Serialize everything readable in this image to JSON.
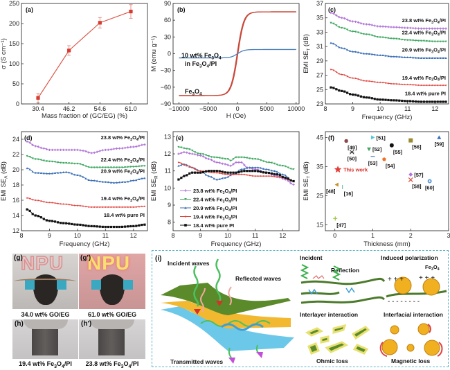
{
  "figure": {
    "colors": {
      "purple": "#b074d8",
      "green": "#3fa860",
      "blue": "#3a6fb8",
      "red": "#e0403a",
      "black": "#111111",
      "line_a": "#d9584a",
      "curve_fe3o4": "#c9483a",
      "curve_composite": "#4a7fb8"
    }
  },
  "chart_data": [
    {
      "id": "a",
      "panel_label": "(a)",
      "type": "line",
      "title": "",
      "xlabel": "Mass fraction of (GC/EG) (%)",
      "ylabel": "σ (S cm⁻¹)",
      "categories": [
        "30.4",
        "46.2",
        "54.6",
        "61.0"
      ],
      "ylim": [
        0,
        250
      ],
      "yticks": [
        0,
        50,
        100,
        150,
        200,
        250
      ],
      "series": [
        {
          "name": "conductivity",
          "values": [
            15,
            133,
            202,
            230
          ],
          "errors": [
            11,
            12,
            13,
            17
          ],
          "marker": "square"
        }
      ]
    },
    {
      "id": "b",
      "panel_label": "(b)",
      "type": "line",
      "xlabel": "H (Oe)",
      "ylabel": "M (emu g⁻¹)",
      "xlim": [
        -10000,
        10000
      ],
      "ylim": [
        -90,
        90
      ],
      "xticks": [
        -10000,
        -5000,
        0,
        5000,
        10000
      ],
      "yticks": [
        -90,
        -60,
        -30,
        0,
        30,
        60,
        90
      ],
      "annotations": [
        {
          "text_parts": [
            "10 wt% Fe",
            "3",
            "O",
            "4"
          ],
          "line2_parts": [
            "in Fe",
            "3",
            "O",
            "4",
            "/PI"
          ]
        },
        {
          "text_parts": [
            "Fe",
            "3",
            "O",
            "4"
          ]
        }
      ],
      "series": [
        {
          "name": "Fe3O4",
          "saturation": 75,
          "x": [
            -10000,
            -5000,
            -2000,
            -1000,
            -500,
            0,
            500,
            1000,
            2000,
            5000,
            10000
          ],
          "y": [
            -75,
            -73,
            -68,
            -55,
            -35,
            0,
            35,
            55,
            68,
            73,
            75
          ]
        },
        {
          "name": "10 wt% Fe3O4 in Fe3O4/PI",
          "saturation": 7.5,
          "x": [
            -10000,
            -5000,
            -2000,
            -1000,
            -500,
            0,
            500,
            1000,
            2000,
            5000,
            10000
          ],
          "y": [
            -7.5,
            -7.3,
            -6.8,
            -5.5,
            -3.5,
            0,
            3.5,
            5.5,
            6.8,
            7.3,
            7.5
          ]
        }
      ]
    },
    {
      "id": "c",
      "panel_label": "(c)",
      "type": "line",
      "xlabel": "Frequency (GHz)",
      "ylabel": "EMI SE_T (dB)",
      "xlim": [
        8,
        12.5
      ],
      "ylim": [
        23,
        37
      ],
      "xticks": [
        8,
        9,
        10,
        11,
        12
      ],
      "yticks": [
        23,
        25,
        27,
        29,
        31,
        33,
        35,
        37
      ],
      "series": [
        {
          "name": "23.8 wt% Fe3O4/PI",
          "color_key": "purple",
          "marker": "plus",
          "x": [
            8.2,
            8.6,
            9.0,
            9.5,
            10.0,
            10.5,
            11.0,
            11.5,
            12.0,
            12.4
          ],
          "y": [
            35.7,
            35.0,
            34.5,
            34.1,
            33.8,
            33.7,
            33.6,
            33.5,
            33.5,
            33.5
          ]
        },
        {
          "name": "22.4 wt% Fe3O4/PI",
          "color_key": "green",
          "marker": "tri-down",
          "x": [
            8.2,
            8.6,
            9.0,
            9.5,
            10.0,
            10.5,
            11.0,
            11.5,
            12.0,
            12.4
          ],
          "y": [
            34.3,
            33.6,
            33.1,
            32.7,
            32.3,
            32.1,
            31.9,
            31.8,
            31.7,
            31.7
          ]
        },
        {
          "name": "20.9 wt% Fe3O4/PI",
          "color_key": "blue",
          "marker": "tri-up",
          "x": [
            8.2,
            8.6,
            9.0,
            9.5,
            10.0,
            10.5,
            11.0,
            11.5,
            12.0,
            12.4
          ],
          "y": [
            31.5,
            30.8,
            30.3,
            30.0,
            29.8,
            29.6,
            29.5,
            29.4,
            29.4,
            29.4
          ]
        },
        {
          "name": "19.4 wt% Fe3O4/PI",
          "color_key": "red",
          "marker": "star",
          "x": [
            8.2,
            8.6,
            9.0,
            9.5,
            10.0,
            10.5,
            11.0,
            11.5,
            12.0,
            12.4
          ],
          "y": [
            27.8,
            27.1,
            26.6,
            26.2,
            26.0,
            25.8,
            25.7,
            25.6,
            25.6,
            25.6
          ]
        },
        {
          "name": "18.4 wt% pure PI",
          "color_key": "black",
          "marker": "square",
          "x": [
            8.2,
            8.6,
            9.0,
            9.5,
            10.0,
            10.5,
            11.0,
            11.5,
            12.0,
            12.4
          ],
          "y": [
            25.3,
            24.8,
            24.3,
            23.9,
            23.6,
            23.5,
            23.4,
            23.3,
            23.3,
            23.3
          ]
        }
      ],
      "labels": [
        {
          "parts": [
            "23.8 wt% Fe",
            "3",
            "O",
            "4",
            "/PI"
          ],
          "at_y": 34.4
        },
        {
          "parts": [
            "22.4 wt% Fe",
            "3",
            "O",
            "4",
            "/PI"
          ],
          "at_y": 32.7
        },
        {
          "parts": [
            "20.9 wt% Fe",
            "3",
            "O",
            "4",
            "/PI"
          ],
          "at_y": 30.3
        },
        {
          "parts": [
            "19.4 wt% Fe",
            "3",
            "O",
            "4",
            "/PI"
          ],
          "at_y": 26.4
        },
        {
          "parts": [
            "18.4 wt% pure PI"
          ],
          "at_y": 24.2
        }
      ]
    },
    {
      "id": "d",
      "panel_label": "(d)",
      "type": "line",
      "xlabel": "Frequency (GHz)",
      "ylabel": "EMI SE_A (dB)",
      "xlim": [
        8,
        12.5
      ],
      "ylim": [
        12,
        25
      ],
      "xticks": [
        8,
        9,
        10,
        11,
        12
      ],
      "yticks": [
        12,
        14,
        16,
        18,
        20,
        22,
        24
      ],
      "series": [
        {
          "name": "23.8 wt% Fe3O4/PI",
          "color_key": "purple",
          "marker": "plus",
          "x": [
            8.2,
            8.5,
            8.8,
            9.0,
            9.5,
            10.0,
            10.2,
            10.5,
            11.0,
            11.5,
            12.0,
            12.4
          ],
          "y": [
            23.7,
            23.1,
            22.8,
            22.6,
            22.6,
            22.6,
            22.5,
            22.2,
            22.6,
            22.8,
            23.0,
            23.3
          ]
        },
        {
          "name": "22.4 wt% Fe3O4/PI",
          "color_key": "green",
          "marker": "tri-down",
          "x": [
            8.2,
            8.5,
            9.0,
            9.5,
            10.0,
            10.5,
            11.0,
            11.5,
            12.0,
            12.4
          ],
          "y": [
            21.8,
            21.4,
            21.1,
            20.9,
            20.8,
            20.3,
            20.3,
            20.3,
            20.4,
            20.5
          ]
        },
        {
          "name": "20.9 wt% Fe3O4/PI",
          "color_key": "blue",
          "marker": "tri-up",
          "x": [
            8.2,
            8.5,
            9.0,
            9.3,
            9.6,
            10.0,
            10.5,
            11.0,
            11.3,
            11.7,
            12.0,
            12.4
          ],
          "y": [
            20.2,
            19.6,
            19.5,
            19.6,
            19.7,
            19.3,
            18.6,
            18.4,
            18.3,
            18.4,
            18.6,
            18.9
          ]
        },
        {
          "name": "19.4 wt% Fe3O4/PI",
          "color_key": "red",
          "marker": "star",
          "x": [
            8.2,
            8.5,
            9.0,
            9.5,
            10.0,
            10.5,
            11.0,
            11.5,
            12.0,
            12.4
          ],
          "y": [
            16.3,
            16.0,
            15.7,
            15.5,
            15.3,
            15.1,
            15.1,
            15.1,
            15.1,
            15.2
          ]
        },
        {
          "name": "18.4 wt% pure PI",
          "color_key": "black",
          "marker": "square",
          "x": [
            8.2,
            8.5,
            9.0,
            9.5,
            10.0,
            10.5,
            11.0,
            11.5,
            12.0,
            12.4
          ],
          "y": [
            14.8,
            14.0,
            13.3,
            13.0,
            12.8,
            12.6,
            12.5,
            12.5,
            12.6,
            12.8
          ]
        }
      ],
      "labels": [
        {
          "parts": [
            "23.8 wt% Fe",
            "3",
            "O",
            "4",
            "/PI"
          ],
          "at_y": 24.0
        },
        {
          "parts": [
            "22.4 wt% Fe",
            "3",
            "O",
            "4",
            "/PI"
          ],
          "at_y": 21.1
        },
        {
          "parts": [
            "20.9 wt% Fe",
            "3",
            "O",
            "4",
            "/PI"
          ],
          "at_y": 19.6
        },
        {
          "parts": [
            "19.4 wt% Fe",
            "3",
            "O",
            "4",
            "/PI"
          ],
          "at_y": 16.0
        },
        {
          "parts": [
            "18.4 wt% pure PI"
          ],
          "at_y": 13.8
        }
      ]
    },
    {
      "id": "e",
      "panel_label": "(e)",
      "type": "line",
      "xlabel": "Frequency (GHz)",
      "ylabel": "EMI SE_R (dB)",
      "xlim": [
        8,
        12.6
      ],
      "ylim": [
        7.5,
        13.3
      ],
      "xticks": [
        8,
        9,
        10,
        11,
        12
      ],
      "yticks": [
        8,
        9,
        10,
        11,
        12,
        13
      ],
      "legend": "bottom-left",
      "series": [
        {
          "name": "23.8 wt% Fe3O4/PI",
          "color_key": "purple",
          "marker": "plus",
          "x": [
            8.2,
            8.4,
            8.7,
            9.0,
            9.3,
            9.6,
            9.9,
            10.1,
            10.3,
            10.5,
            10.7,
            11.0,
            11.4,
            11.8,
            12.1,
            12.4
          ],
          "y": [
            12.0,
            12.1,
            12.0,
            11.9,
            11.7,
            11.5,
            11.4,
            11.3,
            11.5,
            11.5,
            11.2,
            11.1,
            10.9,
            10.7,
            10.5,
            10.2
          ]
        },
        {
          "name": "22.4 wt% Fe3O4/PI",
          "color_key": "green",
          "marker": "tri-down",
          "x": [
            8.2,
            8.5,
            9.0,
            9.5,
            10.0,
            10.1,
            10.3,
            10.5,
            11.0,
            11.5,
            12.0,
            12.4
          ],
          "y": [
            12.4,
            12.3,
            12.0,
            11.8,
            11.7,
            11.6,
            11.8,
            11.8,
            11.7,
            11.5,
            11.3,
            11.1
          ]
        },
        {
          "name": "20.9 wt% Fe3O4/PI",
          "color_key": "blue",
          "marker": "tri-up",
          "x": [
            8.2,
            8.4,
            8.7,
            9.0,
            9.3,
            9.6,
            9.9,
            10.2,
            10.5,
            10.8,
            11.1,
            11.4,
            11.7,
            12.0,
            12.4
          ],
          "y": [
            11.3,
            11.4,
            11.2,
            11.0,
            10.7,
            10.5,
            10.6,
            10.8,
            11.1,
            11.2,
            11.2,
            11.1,
            11.0,
            10.8,
            10.4
          ]
        },
        {
          "name": "19.4 wt% Fe3O4/PI",
          "color_key": "red",
          "marker": "star",
          "x": [
            8.2,
            8.5,
            9.0,
            9.5,
            10.0,
            10.5,
            11.0,
            11.5,
            12.0,
            12.4
          ],
          "y": [
            11.5,
            11.3,
            11.0,
            10.9,
            10.8,
            10.8,
            10.7,
            10.7,
            10.6,
            10.4
          ]
        },
        {
          "name": "18.4 wt% pure PI",
          "color_key": "black",
          "marker": "square",
          "x": [
            8.2,
            8.4,
            8.7,
            9.0,
            9.3,
            9.6,
            10.0,
            10.3,
            10.6,
            11.0,
            11.4,
            11.8,
            12.1,
            12.4
          ],
          "y": [
            10.5,
            10.7,
            10.9,
            10.9,
            11.0,
            11.0,
            10.9,
            10.9,
            11.0,
            11.0,
            10.9,
            10.8,
            10.6,
            10.4
          ]
        }
      ],
      "legend_entries": [
        {
          "parts": [
            "23.8 wt% Fe",
            "3",
            "O",
            "4",
            "/PI"
          ]
        },
        {
          "parts": [
            "22.4 wt% Fe",
            "3",
            "O",
            "4",
            "/PI"
          ]
        },
        {
          "parts": [
            "20.9 wt% Fe",
            "3",
            "O",
            "4",
            "/PI"
          ]
        },
        {
          "parts": [
            "19.4 wt% Fe",
            "3",
            "O",
            "4",
            "/PI"
          ]
        },
        {
          "parts": [
            "18.4 wt% pure PI"
          ]
        }
      ]
    },
    {
      "id": "f",
      "panel_label": "(f)",
      "type": "scatter",
      "xlabel": "Thickness (mm)",
      "ylabel": "EMI SE_T (dB)",
      "xlim": [
        -0.25,
        3.0
      ],
      "ylim": [
        13,
        47
      ],
      "xticks": [
        0,
        1,
        2,
        3
      ],
      "yticks": [
        15,
        25,
        35,
        45
      ],
      "points": [
        {
          "label": "This work",
          "x": 0.08,
          "y": 34,
          "marker": "star",
          "color": "#e0403a",
          "label_pos": "right"
        },
        {
          "label": "[47]",
          "x": 0.01,
          "y": 17.2,
          "marker": "plus",
          "color": "#9ac43c",
          "label_pos": "below-right"
        },
        {
          "label": "[48]",
          "x": 0.05,
          "y": 28.8,
          "marker": "tri-left",
          "color": "#c8922a",
          "label_pos": "below-left"
        },
        {
          "label": "[16]",
          "x": 0.2,
          "y": 28.0,
          "marker": "vline",
          "color": "#7ac8a8",
          "label_pos": "below-right"
        },
        {
          "label": "[49]",
          "x": 0.3,
          "y": 43.8,
          "marker": "hexagon",
          "color": "#8a4a4a",
          "label_pos": "below-right"
        },
        {
          "label": "[50]",
          "x": 0.45,
          "y": 40.0,
          "marker": "asterisk",
          "color": "#333333",
          "label_pos": "below"
        },
        {
          "label": "[51]",
          "x": 1.0,
          "y": 45.0,
          "marker": "tri-right",
          "color": "#4ac8d8",
          "label_pos": "right"
        },
        {
          "label": "[52]",
          "x": 0.9,
          "y": 41.0,
          "marker": "tri-down",
          "color": "#3fa860",
          "label_pos": "right"
        },
        {
          "label": "[53]",
          "x": 1.0,
          "y": 38.5,
          "marker": "hline",
          "color": "#5a8ac8",
          "label_pos": "below"
        },
        {
          "label": "[54]",
          "x": 1.3,
          "y": 37.5,
          "marker": "pentagon",
          "color": "#f07020",
          "label_pos": "below-right"
        },
        {
          "label": "[55]",
          "x": 1.5,
          "y": 42.3,
          "marker": "circle",
          "color": "#111111",
          "label_pos": "below-right"
        },
        {
          "label": "[56]",
          "x": 2.0,
          "y": 44.0,
          "marker": "square",
          "color": "#9a8a30",
          "label_pos": "below-right"
        },
        {
          "label": "[57]",
          "x": 2.0,
          "y": 32.3,
          "marker": "diamond",
          "color": "#b074d8",
          "label_pos": "right"
        },
        {
          "label": "[58]",
          "x": 2.0,
          "y": 30.5,
          "marker": "cross",
          "color": "#e05040",
          "label_pos": "below-right"
        },
        {
          "label": "[59]",
          "x": 2.75,
          "y": 45.0,
          "marker": "tri-up",
          "color": "#3a6fb8",
          "label_pos": "below"
        },
        {
          "label": "[60]",
          "x": 2.5,
          "y": 30.0,
          "marker": "circle-dot",
          "color": "#5a9ad8",
          "label_pos": "below"
        }
      ]
    }
  ],
  "photos": {
    "g": {
      "label": "(g)",
      "sign_text": "NPU",
      "caption": "34.0 wt% GO/EG"
    },
    "g_prime": {
      "label": "(g')",
      "sign_text": "NPU",
      "caption": "61.0 wt% GO/EG"
    },
    "h": {
      "label": "(h)",
      "caption_parts": [
        "19.4 wt% Fe",
        "3",
        "O",
        "4",
        "/PI"
      ]
    },
    "h_prime": {
      "label": "(h')",
      "caption_parts": [
        "23.8 wt% Fe",
        "3",
        "O",
        "4",
        "/PI"
      ]
    }
  },
  "schematic": {
    "label": "(i)",
    "incident_waves": "Incident waves",
    "reflected_waves": "Reflected waves",
    "transmitted_waves": "Transmitted waves",
    "incident": "Incident",
    "reflection": "Reflection",
    "induced_polarization": "Induced polarization",
    "fe3o4_parts": [
      "Fe",
      "3",
      "O",
      "4"
    ],
    "interlayer_interaction": "Interlayer interaction",
    "interfacial_interaction": "Interfacial interaction",
    "ohmic_loss": "Ohmic loss",
    "magnetic_loss": "Magnetic loss"
  }
}
